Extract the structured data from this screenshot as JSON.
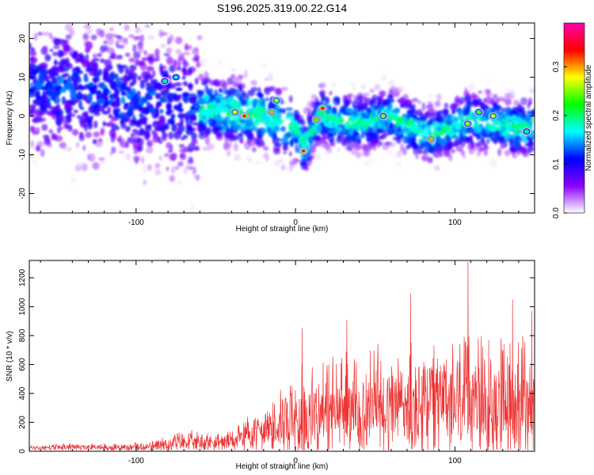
{
  "title": "S196.2025.319.00.22.G14",
  "chart_data": [
    {
      "type": "heatmap",
      "xlabel": "Height of straight line (km)",
      "ylabel": "Frequency (Hz)",
      "xlim": [
        -167,
        150
      ],
      "ylim": [
        -25,
        24
      ],
      "xticks": [
        -100,
        0,
        100
      ],
      "yticks": [
        -20,
        -10,
        0,
        10,
        20
      ],
      "colorbar": {
        "label": "Normalized spectral amplitude",
        "range": [
          0.0,
          0.39
        ],
        "ticks": [
          0.0,
          0.1,
          0.2,
          0.3
        ],
        "colors": [
          "#ffffff",
          "#8800ff",
          "#0000ff",
          "#00ffff",
          "#00ff00",
          "#ffff00",
          "#ff0000",
          "#ff00aa"
        ]
      },
      "ridge": [
        {
          "x": -160,
          "y": 8
        },
        {
          "x": -120,
          "y": 6
        },
        {
          "x": -80,
          "y": 3
        },
        {
          "x": -40,
          "y": 1
        },
        {
          "x": -20,
          "y": 0
        },
        {
          "x": 0,
          "y": -3
        },
        {
          "x": 5,
          "y": -8
        },
        {
          "x": 15,
          "y": 0
        },
        {
          "x": 40,
          "y": -2
        },
        {
          "x": 60,
          "y": 0
        },
        {
          "x": 85,
          "y": -5
        },
        {
          "x": 110,
          "y": -1
        },
        {
          "x": 140,
          "y": -3
        }
      ],
      "hotspots": [
        {
          "x": -82,
          "y": 9,
          "v": 0.2
        },
        {
          "x": -75,
          "y": 10,
          "v": 0.18
        },
        {
          "x": -38,
          "y": 1,
          "v": 0.28
        },
        {
          "x": -32,
          "y": 0,
          "v": 0.33
        },
        {
          "x": -15,
          "y": 1,
          "v": 0.3
        },
        {
          "x": -12,
          "y": 4,
          "v": 0.27
        },
        {
          "x": 5,
          "y": -9,
          "v": 0.33
        },
        {
          "x": 13,
          "y": -1,
          "v": 0.3
        },
        {
          "x": 17,
          "y": 2,
          "v": 0.37
        },
        {
          "x": 55,
          "y": 0,
          "v": 0.25
        },
        {
          "x": 85,
          "y": -6,
          "v": 0.3
        },
        {
          "x": 108,
          "y": -2,
          "v": 0.26
        },
        {
          "x": 115,
          "y": 1,
          "v": 0.24
        },
        {
          "x": 124,
          "y": 0,
          "v": 0.27
        },
        {
          "x": 145,
          "y": -4,
          "v": 0.2
        }
      ]
    },
    {
      "type": "line",
      "xlabel": "Height of straight line (km)",
      "ylabel": "SNR (10 * v/v)",
      "xlim": [
        -167,
        150
      ],
      "ylim": [
        0,
        1320
      ],
      "xticks": [
        -100,
        0,
        100
      ],
      "yticks": [
        0,
        200,
        400,
        600,
        800,
        1000,
        1200
      ],
      "color": "#ee3333",
      "envelope": [
        {
          "x": -167,
          "base": 25,
          "amp": 25
        },
        {
          "x": -90,
          "base": 30,
          "amp": 40
        },
        {
          "x": -75,
          "base": 60,
          "amp": 90
        },
        {
          "x": -40,
          "base": 70,
          "amp": 80
        },
        {
          "x": -25,
          "base": 130,
          "amp": 200
        },
        {
          "x": -10,
          "base": 200,
          "amp": 300
        },
        {
          "x": 0,
          "base": 230,
          "amp": 400
        },
        {
          "x": 20,
          "base": 280,
          "amp": 450
        },
        {
          "x": 50,
          "base": 320,
          "amp": 500
        },
        {
          "x": 100,
          "base": 330,
          "amp": 550
        },
        {
          "x": 150,
          "base": 330,
          "amp": 550
        }
      ],
      "peaks": [
        {
          "x": 4,
          "y": 850
        },
        {
          "x": 32,
          "y": 910
        },
        {
          "x": 72,
          "y": 1090
        },
        {
          "x": 108,
          "y": 1310
        },
        {
          "x": 136,
          "y": 1050
        },
        {
          "x": 148,
          "y": 970
        }
      ]
    }
  ]
}
